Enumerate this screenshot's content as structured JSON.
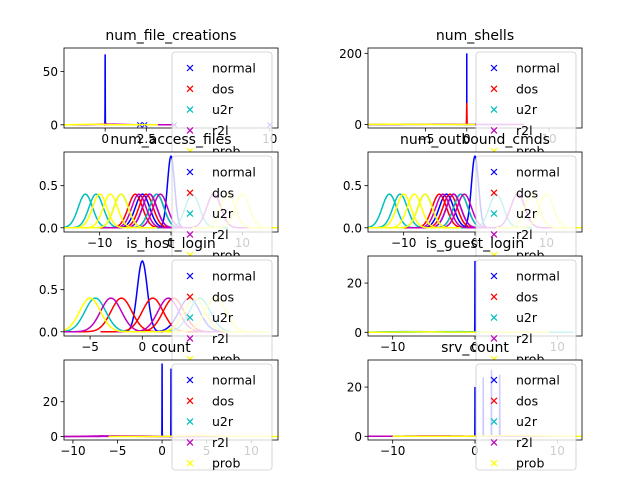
{
  "figure": {
    "legend_labels": [
      "normal",
      "dos",
      "u2r",
      "r2l",
      "prob"
    ],
    "legend_colors": [
      "#0000ff",
      "#ff0000",
      "#00bfbf",
      "#bf00bf",
      "#ffff00"
    ]
  },
  "chart_data": [
    {
      "type": "line",
      "title": "num_file_creations",
      "xlim": [
        -2.5,
        10.5
      ],
      "ylim": [
        -3,
        72
      ],
      "xticks": [
        {
          "v": 0,
          "l": "0"
        },
        {
          "v": 2.5,
          "l": "2.5"
        },
        {
          "v": 10,
          "l": "10"
        }
      ],
      "yticks": [
        {
          "v": 0,
          "l": "0"
        },
        {
          "v": 50,
          "l": "50"
        }
      ],
      "grid": false,
      "legend": "right",
      "series": [
        {
          "name": "normal",
          "color": "#0000ff",
          "curves": [
            {
              "mu": 0,
              "sigma": 0.006,
              "amp": 66
            }
          ],
          "markers": [
            [
              2.1,
              0
            ],
            [
              2.4,
              0
            ],
            [
              4.2,
              0
            ],
            [
              10,
              0
            ]
          ]
        },
        {
          "name": "dos",
          "color": "#ff0000",
          "curves": [
            {
              "mu": 0.05,
              "sigma": 0.03,
              "amp": 1
            }
          ],
          "markers": []
        },
        {
          "name": "u2r",
          "color": "#00bfbf",
          "curves": [],
          "markers": []
        },
        {
          "name": "r2l",
          "color": "#bf00bf",
          "curves": [
            {
              "mu": 0.3,
              "sigma": 0.8,
              "amp": 0.6
            }
          ],
          "markers": []
        },
        {
          "name": "prob",
          "color": "#ffff00",
          "curves": [
            {
              "mu": -0.8,
              "sigma": 0.8,
              "amp": 0.4
            }
          ],
          "markers": []
        }
      ]
    },
    {
      "type": "line",
      "title": "num_shells",
      "xlim": [
        -12,
        14
      ],
      "ylim": [
        -10,
        215
      ],
      "xticks": [
        {
          "v": -5,
          "l": "-5"
        },
        {
          "v": 0,
          "l": "0"
        },
        {
          "v": 10,
          "l": "10"
        }
      ],
      "yticks": [
        {
          "v": 0,
          "l": "0"
        },
        {
          "v": 200,
          "l": "200"
        }
      ],
      "grid": false,
      "legend": "right",
      "series": [
        {
          "name": "normal",
          "color": "#0000ff",
          "curves": [
            {
              "mu": 0,
              "sigma": 0.002,
              "amp": 200
            }
          ],
          "markers": []
        },
        {
          "name": "dos",
          "color": "#ff0000",
          "curves": [
            {
              "mu": 0,
              "sigma": 0.02,
              "amp": 60
            }
          ],
          "markers": []
        },
        {
          "name": "u2r",
          "color": "#00bfbf",
          "curves": [
            {
              "mu": -5,
              "sigma": 2,
              "amp": 0.4
            }
          ],
          "markers": []
        },
        {
          "name": "r2l",
          "color": "#bf00bf",
          "curves": [
            {
              "mu": -3,
              "sigma": 2,
              "amp": 0.5
            }
          ],
          "markers": []
        },
        {
          "name": "prob",
          "color": "#ffff00",
          "curves": [
            {
              "mu": -9,
              "sigma": 2,
              "amp": 0.4
            }
          ],
          "markers": []
        }
      ]
    },
    {
      "type": "line",
      "title": "num_access_files",
      "xlim": [
        -15,
        15
      ],
      "ylim": [
        -0.05,
        0.9
      ],
      "xticks": [
        {
          "v": -10,
          "l": "-10"
        },
        {
          "v": 0,
          "l": "0"
        },
        {
          "v": 10,
          "l": "10"
        }
      ],
      "yticks": [
        {
          "v": 0,
          "l": "0.0"
        },
        {
          "v": 0.5,
          "l": "0.5"
        }
      ],
      "grid": false,
      "legend": "right",
      "series": [
        {
          "name": "normal",
          "color": "#0000ff",
          "curves": [
            {
              "mu": 0,
              "sigma": 0.5,
              "amp": 0.85
            },
            {
              "mu": -4,
              "sigma": 1,
              "amp": 0.4
            },
            {
              "mu": -3,
              "sigma": 1,
              "amp": 0.4
            }
          ],
          "markers": []
        },
        {
          "name": "dos",
          "color": "#ff0000",
          "curves": [
            {
              "mu": -5,
              "sigma": 1,
              "amp": 0.4
            },
            {
              "mu": -3.5,
              "sigma": 1,
              "amp": 0.4
            },
            {
              "mu": -2,
              "sigma": 1,
              "amp": 0.4
            }
          ],
          "markers": []
        },
        {
          "name": "u2r",
          "color": "#00bfbf",
          "curves": [
            {
              "mu": -12,
              "sigma": 1,
              "amp": 0.4
            },
            {
              "mu": -10.5,
              "sigma": 1,
              "amp": 0.4
            },
            {
              "mu": -7,
              "sigma": 1,
              "amp": 0.4
            },
            {
              "mu": -2,
              "sigma": 1,
              "amp": 0.4
            },
            {
              "mu": 3,
              "sigma": 1,
              "amp": 0.4
            }
          ],
          "markers": []
        },
        {
          "name": "r2l",
          "color": "#bf00bf",
          "curves": [
            {
              "mu": -4.5,
              "sigma": 1,
              "amp": 0.4
            },
            {
              "mu": -3,
              "sigma": 1,
              "amp": 0.4
            },
            {
              "mu": -1.5,
              "sigma": 1,
              "amp": 0.4
            },
            {
              "mu": 6,
              "sigma": 1,
              "amp": 0.4
            }
          ],
          "markers": []
        },
        {
          "name": "prob",
          "color": "#ffff00",
          "curves": [
            {
              "mu": -10,
              "sigma": 1,
              "amp": 0.4
            },
            {
              "mu": -8.5,
              "sigma": 1,
              "amp": 0.4
            },
            {
              "mu": -7,
              "sigma": 1,
              "amp": 0.4
            },
            {
              "mu": 8,
              "sigma": 1,
              "amp": 0.4
            },
            {
              "mu": 10,
              "sigma": 1,
              "amp": 0.4
            }
          ],
          "markers": []
        }
      ]
    },
    {
      "type": "line",
      "title": "num_outbound_cmds",
      "xlim": [
        -15,
        15
      ],
      "ylim": [
        -0.05,
        0.9
      ],
      "xticks": [
        {
          "v": -10,
          "l": "-10"
        },
        {
          "v": 0,
          "l": "0"
        },
        {
          "v": 10,
          "l": "10"
        }
      ],
      "yticks": [
        {
          "v": 0,
          "l": "0.0"
        },
        {
          "v": 0.5,
          "l": "0.5"
        }
      ],
      "grid": false,
      "legend": "right",
      "series": [
        {
          "name": "normal",
          "color": "#0000ff",
          "curves": [
            {
              "mu": 0,
              "sigma": 0.5,
              "amp": 0.85
            },
            {
              "mu": -4,
              "sigma": 1,
              "amp": 0.4
            },
            {
              "mu": -3,
              "sigma": 1,
              "amp": 0.4
            }
          ],
          "markers": []
        },
        {
          "name": "dos",
          "color": "#ff0000",
          "curves": [
            {
              "mu": -5,
              "sigma": 1,
              "amp": 0.4
            },
            {
              "mu": -3.5,
              "sigma": 1,
              "amp": 0.4
            },
            {
              "mu": -2,
              "sigma": 1,
              "amp": 0.4
            }
          ],
          "markers": []
        },
        {
          "name": "u2r",
          "color": "#00bfbf",
          "curves": [
            {
              "mu": -12,
              "sigma": 1,
              "amp": 0.4
            },
            {
              "mu": -10.5,
              "sigma": 1,
              "amp": 0.4
            },
            {
              "mu": -7,
              "sigma": 1,
              "amp": 0.4
            },
            {
              "mu": -2,
              "sigma": 1,
              "amp": 0.4
            },
            {
              "mu": 3,
              "sigma": 1,
              "amp": 0.4
            }
          ],
          "markers": []
        },
        {
          "name": "r2l",
          "color": "#bf00bf",
          "curves": [
            {
              "mu": -4.5,
              "sigma": 1,
              "amp": 0.4
            },
            {
              "mu": -3,
              "sigma": 1,
              "amp": 0.4
            },
            {
              "mu": -1.5,
              "sigma": 1,
              "amp": 0.4
            },
            {
              "mu": 6,
              "sigma": 1,
              "amp": 0.4
            }
          ],
          "markers": []
        },
        {
          "name": "prob",
          "color": "#ffff00",
          "curves": [
            {
              "mu": -10,
              "sigma": 1,
              "amp": 0.4
            },
            {
              "mu": -8.5,
              "sigma": 1,
              "amp": 0.4
            },
            {
              "mu": -7,
              "sigma": 1,
              "amp": 0.4
            },
            {
              "mu": 8,
              "sigma": 1,
              "amp": 0.4
            },
            {
              "mu": 10,
              "sigma": 1,
              "amp": 0.4
            }
          ],
          "markers": []
        }
      ]
    },
    {
      "type": "line",
      "title": "is_host_login",
      "xlim": [
        -7.5,
        13
      ],
      "ylim": [
        -0.05,
        0.9
      ],
      "xticks": [
        {
          "v": -5,
          "l": "-5"
        },
        {
          "v": 0,
          "l": "0"
        }
      ],
      "yticks": [
        {
          "v": 0,
          "l": "0.0"
        },
        {
          "v": 0.5,
          "l": "0.5"
        }
      ],
      "grid": false,
      "legend": "right",
      "series": [
        {
          "name": "normal",
          "color": "#0000ff",
          "curves": [
            {
              "mu": 0,
              "sigma": 0.48,
              "amp": 0.84
            },
            {
              "mu": 4.5,
              "sigma": 1,
              "amp": 0.4
            }
          ],
          "markers": []
        },
        {
          "name": "dos",
          "color": "#ff0000",
          "curves": [
            {
              "mu": -2,
              "sigma": 1,
              "amp": 0.4
            },
            {
              "mu": 1,
              "sigma": 1,
              "amp": 0.4
            },
            {
              "mu": 3,
              "sigma": 1,
              "amp": 0.4
            }
          ],
          "markers": []
        },
        {
          "name": "u2r",
          "color": "#00bfbf",
          "curves": [
            {
              "mu": -4.5,
              "sigma": 1,
              "amp": 0.4
            },
            {
              "mu": 5.5,
              "sigma": 1,
              "amp": 0.4
            }
          ],
          "markers": []
        },
        {
          "name": "r2l",
          "color": "#bf00bf",
          "curves": [
            {
              "mu": -3,
              "sigma": 1,
              "amp": 0.4
            },
            {
              "mu": 2.5,
              "sigma": 1,
              "amp": 0.4
            }
          ],
          "markers": []
        },
        {
          "name": "prob",
          "color": "#ffff00",
          "curves": [
            {
              "mu": -5,
              "sigma": 1,
              "amp": 0.4
            },
            {
              "mu": 5,
              "sigma": 1,
              "amp": 0.4
            },
            {
              "mu": 7,
              "sigma": 1,
              "amp": 0.4
            }
          ],
          "markers": []
        }
      ]
    },
    {
      "type": "line",
      "title": "is_guest_login",
      "xlim": [
        -13,
        13
      ],
      "ylim": [
        -1.5,
        31
      ],
      "xticks": [
        {
          "v": -10,
          "l": "-10"
        },
        {
          "v": 0,
          "l": "0"
        },
        {
          "v": 10,
          "l": "10"
        }
      ],
      "yticks": [
        {
          "v": 0,
          "l": "0"
        },
        {
          "v": 20,
          "l": "20"
        }
      ],
      "grid": false,
      "legend": "right",
      "series": [
        {
          "name": "normal",
          "color": "#0000ff",
          "curves": [
            {
              "mu": 0,
              "sigma": 0.013,
              "amp": 29
            }
          ],
          "markers": []
        },
        {
          "name": "dos",
          "color": "#ff0000",
          "curves": [],
          "markers": []
        },
        {
          "name": "u2r",
          "color": "#00bfbf",
          "curves": [
            {
              "mu": -8,
              "sigma": 3,
              "amp": 0.3
            },
            {
              "mu": -3,
              "sigma": 3,
              "amp": 0.3
            }
          ],
          "markers": []
        },
        {
          "name": "r2l",
          "color": "#bf00bf",
          "curves": [],
          "markers": []
        },
        {
          "name": "prob",
          "color": "#ffff00",
          "curves": [
            {
              "mu": -6,
              "sigma": 3,
              "amp": 0.2
            }
          ],
          "markers": []
        }
      ]
    },
    {
      "type": "line",
      "title": "count",
      "xlim": [
        -11,
        13
      ],
      "ylim": [
        -2,
        44
      ],
      "xticks": [
        {
          "v": -10,
          "l": "-10"
        },
        {
          "v": -5,
          "l": "-5"
        },
        {
          "v": 0,
          "l": "0"
        },
        {
          "v": 5,
          "l": "5"
        },
        {
          "v": 10,
          "l": "10"
        }
      ],
      "yticks": [
        {
          "v": 0,
          "l": "0"
        },
        {
          "v": 20,
          "l": "20"
        }
      ],
      "grid": false,
      "legend": "right",
      "series": [
        {
          "name": "normal",
          "color": "#0000ff",
          "curves": [
            {
              "mu": 0,
              "sigma": 0.01,
              "amp": 42
            },
            {
              "mu": 1,
              "sigma": 0.01,
              "amp": 39
            }
          ],
          "markers": []
        },
        {
          "name": "dos",
          "color": "#ff0000",
          "curves": [],
          "markers": []
        },
        {
          "name": "u2r",
          "color": "#00bfbf",
          "curves": [],
          "markers": []
        },
        {
          "name": "r2l",
          "color": "#bf00bf",
          "curves": [
            {
              "mu": -6,
              "sigma": 2,
              "amp": 0.4
            },
            {
              "mu": -3,
              "sigma": 2,
              "amp": 0.3
            }
          ],
          "markers": []
        },
        {
          "name": "prob",
          "color": "#ffff00",
          "curves": [
            {
              "mu": 4,
              "sigma": 2,
              "amp": 0.5
            }
          ],
          "markers": []
        }
      ]
    },
    {
      "type": "line",
      "title": "srv_count",
      "xlim": [
        -13,
        13
      ],
      "ylim": [
        -1.5,
        31
      ],
      "xticks": [
        {
          "v": -10,
          "l": "-10"
        },
        {
          "v": 0,
          "l": "0"
        },
        {
          "v": 10,
          "l": "10"
        }
      ],
      "yticks": [
        {
          "v": 0,
          "l": "0"
        },
        {
          "v": 20,
          "l": "20"
        }
      ],
      "grid": false,
      "legend": "right",
      "series": [
        {
          "name": "normal",
          "color": "#0000ff",
          "curves": [
            {
              "mu": 0,
              "sigma": 0.01,
              "amp": 20
            },
            {
              "mu": 1,
              "sigma": 0.01,
              "amp": 24
            },
            {
              "mu": 2,
              "sigma": 0.01,
              "amp": 27
            },
            {
              "mu": 3,
              "sigma": 0.01,
              "amp": 25
            }
          ],
          "markers": []
        },
        {
          "name": "dos",
          "color": "#ff0000",
          "curves": [],
          "markers": []
        },
        {
          "name": "u2r",
          "color": "#00bfbf",
          "curves": [],
          "markers": []
        },
        {
          "name": "r2l",
          "color": "#bf00bf",
          "curves": [
            {
              "mu": -5,
              "sigma": 3,
              "amp": 0.2
            }
          ],
          "markers": []
        },
        {
          "name": "prob",
          "color": "#ffff00",
          "curves": [
            {
              "mu": 5,
              "sigma": 3,
              "amp": 0.3
            }
          ],
          "markers": []
        }
      ]
    }
  ]
}
